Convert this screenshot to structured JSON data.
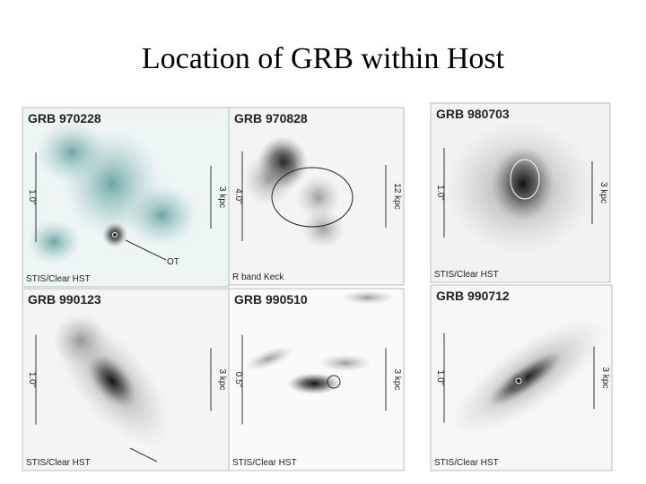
{
  "title": "Location of GRB within Host",
  "panels": [
    {
      "label": "GRB 970228",
      "scale_angle": "1.0\"",
      "scale_physical": "3 kpc",
      "caption": "STIS/Clear HST",
      "marker_label": "OT"
    },
    {
      "label": "GRB 970828",
      "scale_angle": "4.0\"",
      "scale_physical": "12 kpc",
      "caption": "R band Keck"
    },
    {
      "label": "GRB 980703",
      "scale_angle": "1.0\"",
      "scale_physical": "3 kpc",
      "caption": "STIS/Clear HST"
    },
    {
      "label": "GRB 990123",
      "scale_angle": "1.0\"",
      "scale_physical": "3 kpc",
      "caption": "STIS/Clear HST"
    },
    {
      "label": "GRB 990510",
      "scale_angle": "0.5\"",
      "scale_physical": "3 kpc",
      "caption": "STIS/Clear HST"
    },
    {
      "label": "GRB 990712",
      "scale_angle": "1.0\"",
      "scale_physical": "3 kpc",
      "caption": "STIS/Clear HST"
    }
  ]
}
